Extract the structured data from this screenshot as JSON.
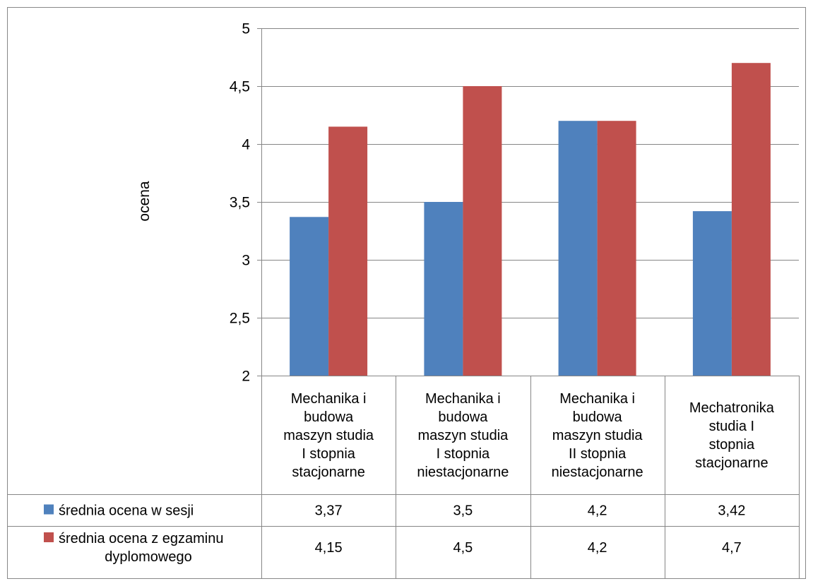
{
  "chart_data": {
    "type": "bar",
    "title": "",
    "xlabel": "",
    "ylabel": "ocena",
    "ylim": [
      2,
      5
    ],
    "y_ticks": [
      "2",
      "2,5",
      "3",
      "3,5",
      "4",
      "4,5",
      "5"
    ],
    "y_tick_values": [
      2,
      2.5,
      3,
      3.5,
      4,
      4.5,
      5
    ],
    "grid": true,
    "legend": "data-table-left",
    "categories": [
      "Mechanika i budowa maszyn studia I stopnia stacjonarne",
      "Mechanika i budowa maszyn studia I stopnia niestacjonarne",
      "Mechanika i budowa maszyn studia II stopnia niestacjonarne",
      "Mechatronika studia I stopnia stacjonarne"
    ],
    "category_lines": [
      [
        "Mechanika i",
        "budowa",
        "maszyn studia",
        "I stopnia",
        "stacjonarne"
      ],
      [
        "Mechanika i",
        "budowa",
        "maszyn studia",
        "I stopnia",
        "niestacjonarne"
      ],
      [
        "Mechanika i",
        "budowa",
        "maszyn studia",
        "II stopnia",
        "niestacjonarne"
      ],
      [
        "Mechatronika",
        "studia I",
        "stopnia",
        "stacjonarne"
      ]
    ],
    "series": [
      {
        "name": "średnia ocena w sesji",
        "name_lines": [
          "średnia ocena w sesji"
        ],
        "color": "#4F81BD",
        "values": [
          3.37,
          3.5,
          4.2,
          3.42
        ],
        "labels": [
          "3,37",
          "3,5",
          "4,2",
          "3,42"
        ]
      },
      {
        "name": "średnia ocena z egzaminu dyplomowego",
        "name_lines": [
          "średnia ocena z egzaminu",
          "dyplomowego"
        ],
        "color": "#C0504D",
        "values": [
          4.15,
          4.5,
          4.2,
          4.7
        ],
        "labels": [
          "4,15",
          "4,5",
          "4,2",
          "4,7"
        ]
      }
    ]
  }
}
